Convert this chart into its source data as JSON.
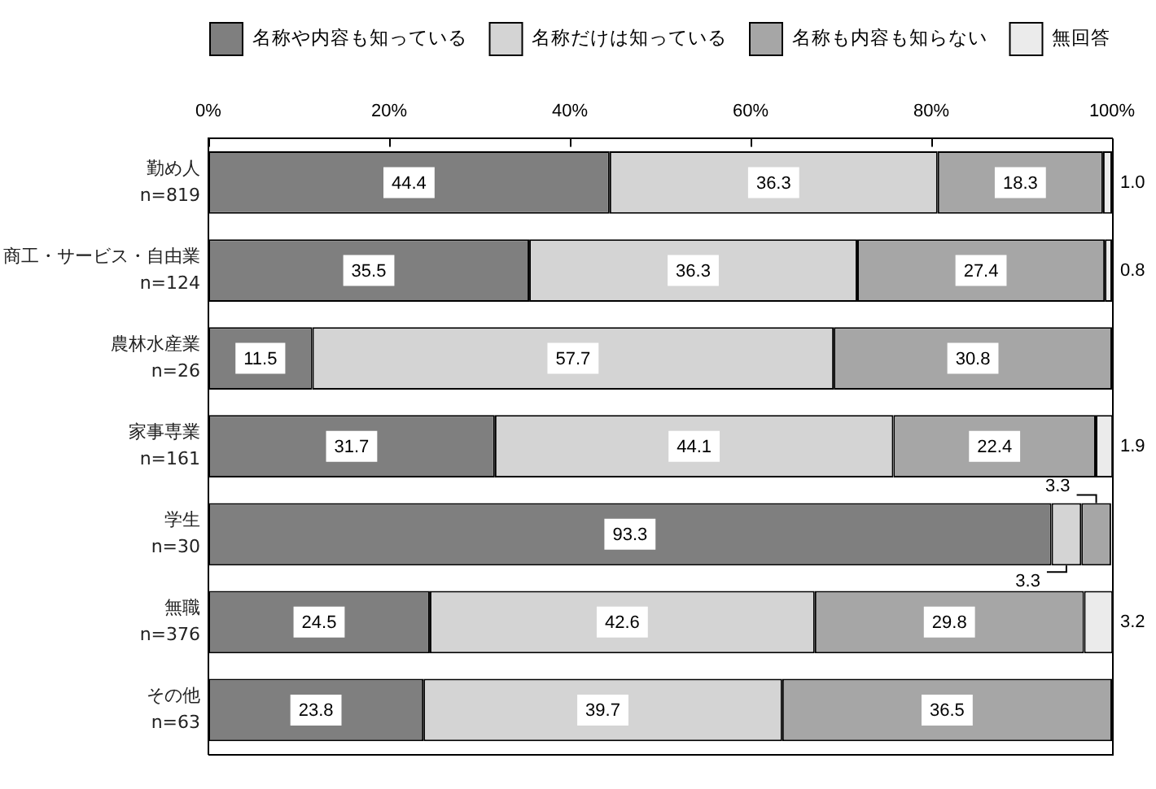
{
  "chart_data": {
    "type": "bar",
    "orientation": "horizontal",
    "stacked": true,
    "categories": [
      "勤め人\nn=819",
      "商工・サービス・自由業\nn=124",
      "農林水産業\nn=26",
      "家事専業\nn=161",
      "学生\nn=30",
      "無職\nn=376",
      "その他\nn=63"
    ],
    "xlim": [
      0,
      100
    ],
    "xticks": [
      {
        "value": 0,
        "label": "0%"
      },
      {
        "value": 20,
        "label": "20%"
      },
      {
        "value": 40,
        "label": "40%"
      },
      {
        "value": 60,
        "label": "60%"
      },
      {
        "value": 80,
        "label": "80%"
      },
      {
        "value": 100,
        "label": "100%"
      }
    ],
    "legend": "top",
    "grid": false,
    "series": [
      {
        "name": "名称や内容も知っている",
        "color": "#7f7f7f",
        "values": [
          44.4,
          35.5,
          11.5,
          31.7,
          93.3,
          24.5,
          23.8
        ],
        "value_labels": [
          "44.4",
          "35.5",
          "11.5",
          "31.7",
          "93.3",
          "24.5",
          "23.8"
        ]
      },
      {
        "name": "名称だけは知っている",
        "color": "#d4d4d4",
        "values": [
          36.3,
          36.3,
          57.7,
          44.1,
          3.3,
          42.6,
          39.7
        ],
        "value_labels": [
          "36.3",
          "36.3",
          "57.7",
          "44.1",
          "3.3",
          "42.6",
          "39.7"
        ]
      },
      {
        "name": "名称も内容も知らない",
        "color": "#a6a6a6",
        "values": [
          18.3,
          27.4,
          30.8,
          22.4,
          3.3,
          29.8,
          36.5
        ],
        "value_labels": [
          "18.3",
          "27.4",
          "30.8",
          "22.4",
          "3.3",
          "29.8",
          "36.5"
        ]
      },
      {
        "name": "無回答",
        "color": "#ebebeb",
        "values": [
          1.0,
          0.8,
          null,
          1.9,
          null,
          3.2,
          null
        ],
        "value_labels": [
          "1.0",
          "0.8",
          null,
          "1.9",
          null,
          "3.2",
          null
        ]
      }
    ]
  }
}
